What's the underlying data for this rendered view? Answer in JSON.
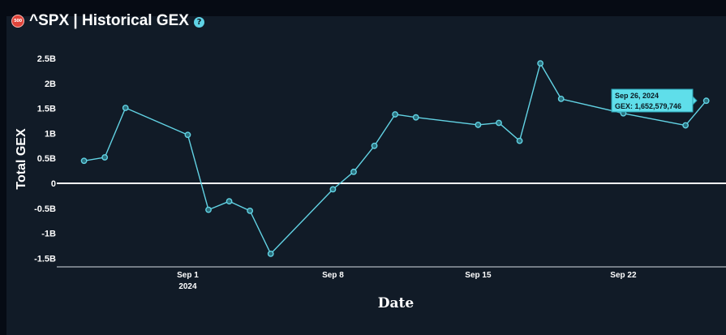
{
  "header": {
    "logo_text": "500",
    "title": "^SPX | Historical GEX",
    "help_icon": "question-circle-icon",
    "help_glyph": "?"
  },
  "colors": {
    "background": "#111b27",
    "line": "#62d3e4",
    "zero_line": "#ffffff",
    "text": "#ffffff",
    "tooltip_bg": "#5fdeea"
  },
  "tooltip": {
    "line1": "Sep 26, 2024",
    "line2": "GEX: 1,652,579,746"
  },
  "chart_data": {
    "type": "line",
    "title": "^SPX | Historical GEX",
    "xlabel": "Date",
    "ylabel": "Total GEX",
    "x_ticks": [
      {
        "date": "2024-09-01",
        "label": "Sep 1",
        "sublabel": "2024"
      },
      {
        "date": "2024-09-08",
        "label": "Sep 8",
        "sublabel": ""
      },
      {
        "date": "2024-09-15",
        "label": "Sep 15",
        "sublabel": ""
      },
      {
        "date": "2024-09-22",
        "label": "Sep 22",
        "sublabel": ""
      }
    ],
    "y_ticks": [
      {
        "value": 2500000000,
        "label": "2.5B"
      },
      {
        "value": 2000000000,
        "label": "2B"
      },
      {
        "value": 1500000000,
        "label": "1.5B"
      },
      {
        "value": 1000000000,
        "label": "1B"
      },
      {
        "value": 500000000,
        "label": "0.5B"
      },
      {
        "value": 0,
        "label": "0"
      },
      {
        "value": -500000000,
        "label": "-0.5B"
      },
      {
        "value": -1000000000,
        "label": "-1B"
      },
      {
        "value": -1500000000,
        "label": "-1.5B"
      }
    ],
    "ylim": [
      -1650000000,
      2600000000
    ],
    "xlim": [
      "2024-08-25",
      "2024-09-29"
    ],
    "zero_line": true,
    "grid": false,
    "series": [
      {
        "points": [
          {
            "date": "2024-08-27",
            "value": 450000000
          },
          {
            "date": "2024-08-28",
            "value": 520000000
          },
          {
            "date": "2024-08-29",
            "value": 1510000000
          },
          {
            "date": "2024-09-01",
            "value": 970000000
          },
          {
            "date": "2024-09-02",
            "value": -530000000
          },
          {
            "date": "2024-09-03",
            "value": -360000000
          },
          {
            "date": "2024-09-04",
            "value": -550000000
          },
          {
            "date": "2024-09-05",
            "value": -1410000000
          },
          {
            "date": "2024-09-08",
            "value": -120000000
          },
          {
            "date": "2024-09-09",
            "value": 230000000
          },
          {
            "date": "2024-09-10",
            "value": 750000000
          },
          {
            "date": "2024-09-11",
            "value": 1380000000
          },
          {
            "date": "2024-09-12",
            "value": 1320000000
          },
          {
            "date": "2024-09-15",
            "value": 1170000000
          },
          {
            "date": "2024-09-16",
            "value": 1210000000
          },
          {
            "date": "2024-09-17",
            "value": 850000000
          },
          {
            "date": "2024-09-18",
            "value": 2400000000
          },
          {
            "date": "2024-09-19",
            "value": 1690000000
          },
          {
            "date": "2024-09-22",
            "value": 1400000000
          },
          {
            "date": "2024-09-25",
            "value": 1160000000
          },
          {
            "date": "2024-09-26",
            "value": 1652579746
          }
        ]
      }
    ]
  }
}
